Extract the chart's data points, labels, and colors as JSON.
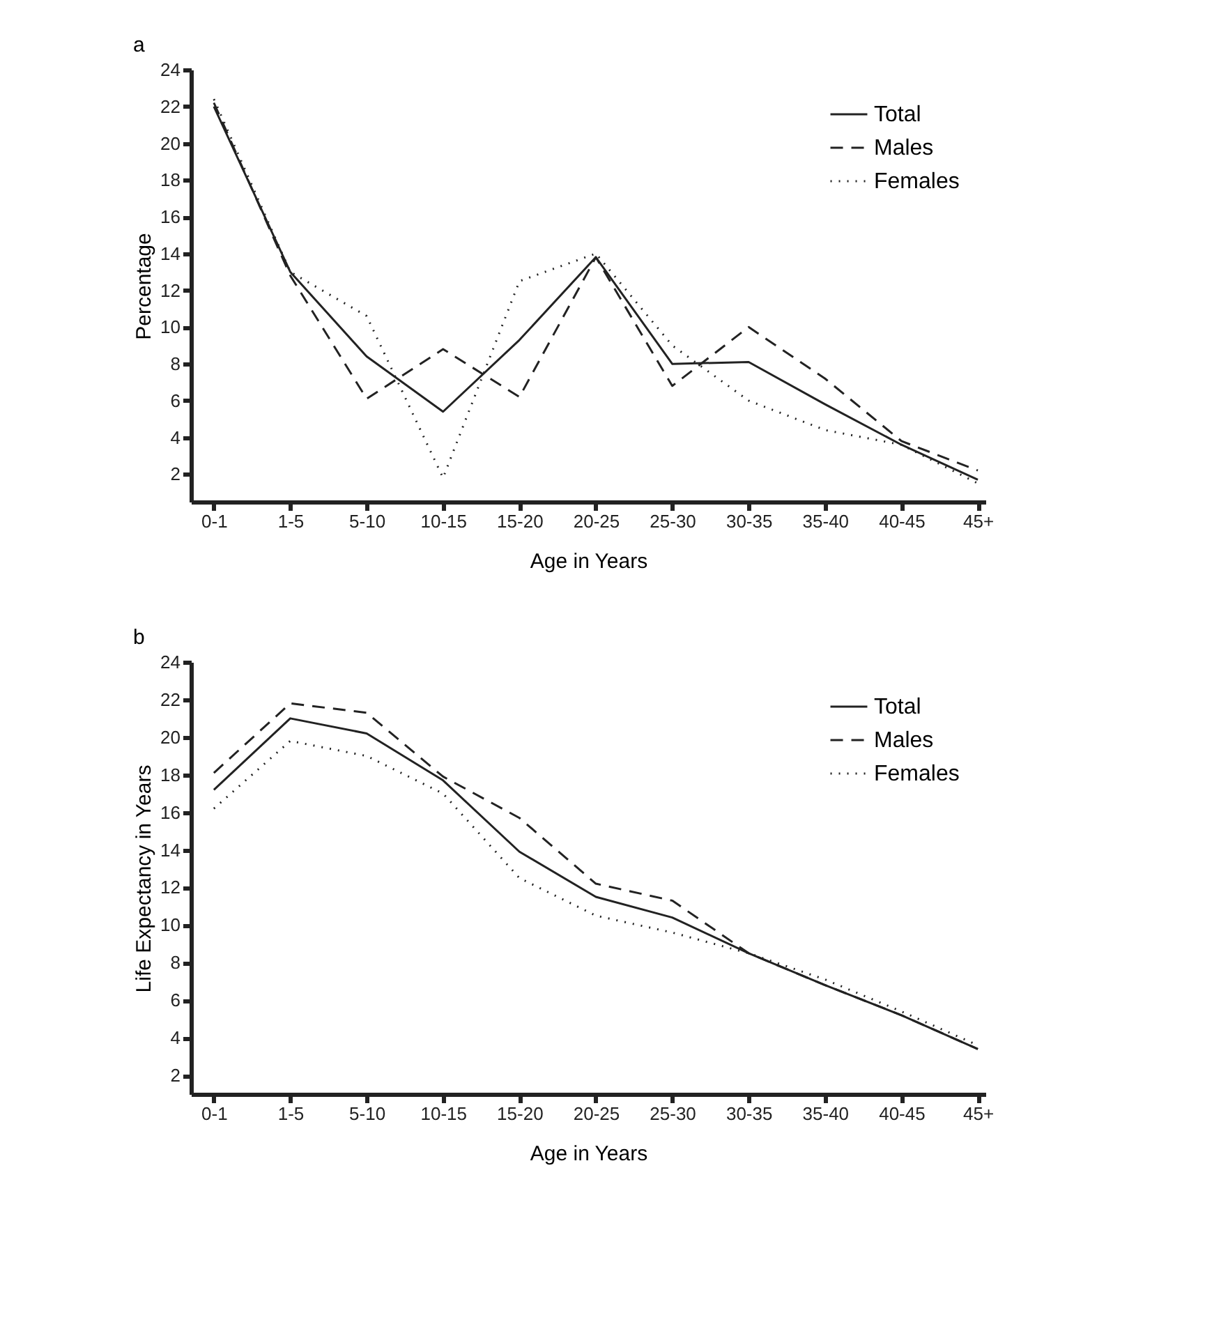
{
  "chart_data": [
    {
      "type": "line",
      "title": "a",
      "xlabel": "Age in Years",
      "ylabel": "Percentage",
      "categories": [
        "0-1",
        "1-5",
        "5-10",
        "10-15",
        "15-20",
        "20-25",
        "25-30",
        "30-35",
        "35-40",
        "40-45",
        "45+"
      ],
      "series": [
        {
          "name": "Total",
          "color": "#222222",
          "line_style": "solid",
          "values": [
            22,
            13,
            8.4,
            5.4,
            9.3,
            13.8,
            8,
            8.1,
            5.8,
            3.6,
            1.7
          ]
        },
        {
          "name": "Males",
          "color": "#222222",
          "line_style": "dashed",
          "values": [
            22.2,
            12.8,
            6.1,
            8.8,
            6.2,
            13.8,
            6.8,
            10,
            7.2,
            3.8,
            2.2
          ]
        },
        {
          "name": "Females",
          "color": "#222222",
          "line_style": "dotted",
          "values": [
            22.4,
            13,
            10.6,
            1.8,
            12.5,
            14,
            9,
            6,
            4.4,
            3.6,
            1.5
          ]
        }
      ],
      "ylim": [
        0.5,
        24
      ],
      "yticks": [
        2,
        4,
        6,
        8,
        10,
        12,
        14,
        16,
        18,
        20,
        22,
        24
      ],
      "grid": false,
      "legend": "top right"
    },
    {
      "type": "line",
      "title": "b",
      "xlabel": "Age in Years",
      "ylabel": "Life Expectancy in Years",
      "categories": [
        "0-1",
        "1-5",
        "5-10",
        "10-15",
        "15-20",
        "20-25",
        "25-30",
        "30-35",
        "35-40",
        "40-45",
        "45+"
      ],
      "series": [
        {
          "name": "Total",
          "color": "#222222",
          "line_style": "solid",
          "values": [
            17.2,
            21,
            20.2,
            17.7,
            13.9,
            11.5,
            10.4,
            8.5,
            6.8,
            5.2,
            3.4
          ]
        },
        {
          "name": "Males",
          "color": "#222222",
          "line_style": "dashed",
          "values": [
            18.1,
            21.8,
            21.3,
            17.9,
            15.7,
            12.2,
            11.3,
            8.5,
            6.8,
            5.2,
            3.4
          ]
        },
        {
          "name": "Females",
          "color": "#222222",
          "line_style": "dotted",
          "values": [
            16.2,
            19.8,
            19,
            17,
            12.5,
            10.5,
            9.6,
            8.5,
            7.1,
            5.4,
            3.6
          ]
        }
      ],
      "ylim": [
        1,
        24
      ],
      "yticks": [
        2,
        4,
        6,
        8,
        10,
        12,
        14,
        16,
        18,
        20,
        22,
        24
      ],
      "grid": false,
      "legend": "top right"
    }
  ]
}
